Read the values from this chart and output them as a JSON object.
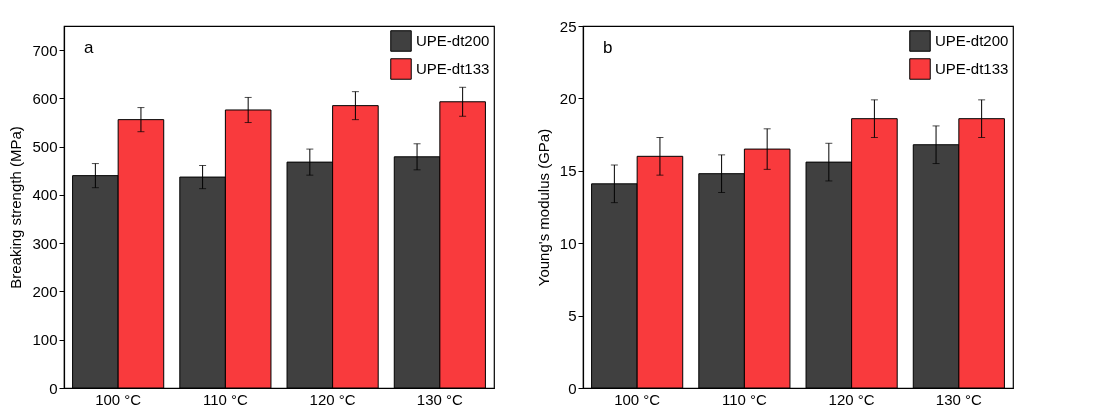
{
  "chart_data": [
    {
      "type": "bar",
      "categories": [
        "100 °C",
        "110 °C",
        "120 °C",
        "130 °C"
      ],
      "ylabel": "Breaking strength (MPa)",
      "ylim": [
        0,
        750
      ],
      "yticks": [
        0,
        100,
        200,
        300,
        400,
        500,
        600,
        700
      ],
      "legend": "top right",
      "grid": false,
      "annotations": [
        "a"
      ],
      "series": [
        {
          "name": "UPE-dt200",
          "color": "#404040",
          "values": [
            440,
            437,
            468,
            479
          ],
          "errors": [
            25,
            24,
            27,
            27
          ]
        },
        {
          "name": "UPE-dt133",
          "color": "#f93a3d",
          "values": [
            556,
            576,
            585,
            593
          ],
          "errors": [
            25,
            26,
            29,
            30
          ]
        }
      ]
    },
    {
      "type": "bar",
      "categories": [
        "100 °C",
        "110 °C",
        "120 °C",
        "130 °C"
      ],
      "ylabel": "Young's modulus (GPa)",
      "ylim": [
        0,
        25
      ],
      "yticks": [
        0,
        5,
        10,
        15,
        20,
        25
      ],
      "legend": "top right",
      "grid": false,
      "annotations": [
        "b"
      ],
      "series": [
        {
          "name": "UPE-dt200",
          "color": "#404040",
          "values": [
            14.1,
            14.8,
            15.6,
            16.8
          ],
          "errors": [
            1.3,
            1.3,
            1.3,
            1.3
          ]
        },
        {
          "name": "UPE-dt133",
          "color": "#f93a3d",
          "values": [
            16.0,
            16.5,
            18.6,
            18.6
          ],
          "errors": [
            1.3,
            1.4,
            1.3,
            1.3
          ]
        }
      ]
    }
  ]
}
